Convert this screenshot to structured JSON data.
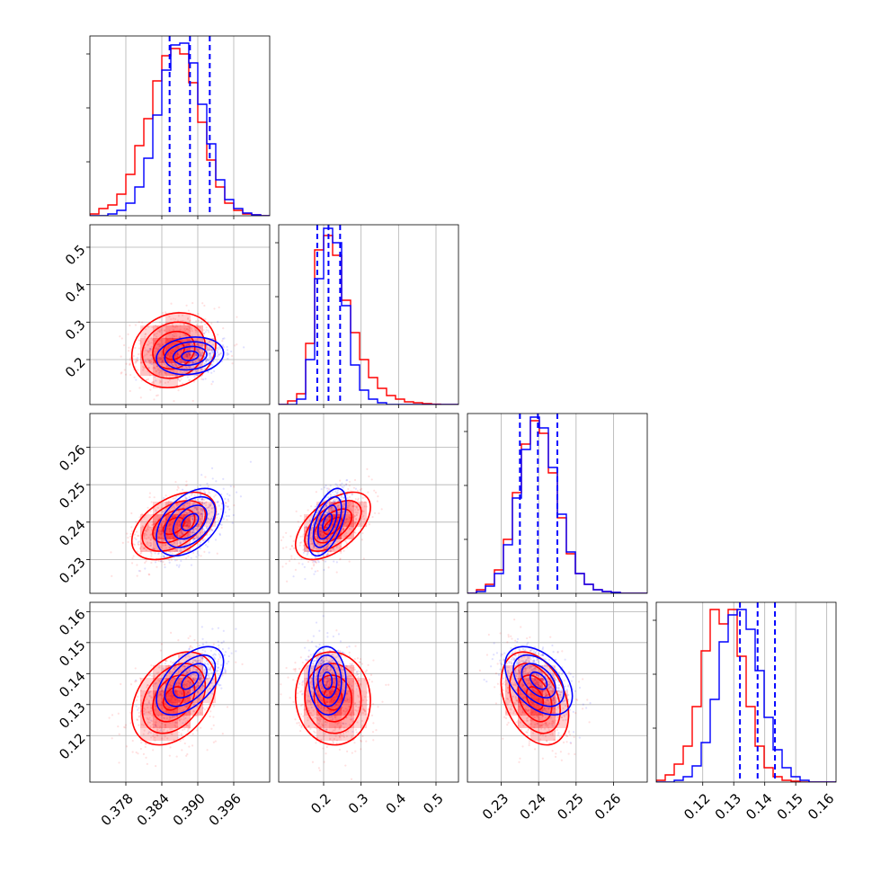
{
  "chart_data": {
    "type": "corner",
    "grid": true,
    "colors": {
      "red": "#ff0000",
      "blue": "#0000ff",
      "grid": "#b0b0b0"
    },
    "parameters": [
      {
        "range": [
          0.372,
          0.402
        ],
        "ticks": [
          0.378,
          0.384,
          0.39,
          0.396
        ],
        "tick_labels": [
          "0.378",
          "0.384",
          "0.390",
          "0.396"
        ]
      },
      {
        "range": [
          0.08,
          0.56
        ],
        "ticks": [
          0.2,
          0.3,
          0.4,
          0.5
        ],
        "tick_labels": [
          "0.2",
          "0.3",
          "0.4",
          "0.5"
        ]
      },
      {
        "range": [
          0.221,
          0.269
        ],
        "ticks": [
          0.23,
          0.24,
          0.25,
          0.26
        ],
        "tick_labels": [
          "0.23",
          "0.24",
          "0.25",
          "0.26"
        ]
      },
      {
        "range": [
          0.105,
          0.163
        ],
        "ticks": [
          0.12,
          0.13,
          0.14,
          0.15,
          0.16
        ],
        "tick_labels": [
          "0.12",
          "0.13",
          "0.14",
          "0.15",
          "0.16"
        ]
      }
    ],
    "quantile_lines": [
      [
        0.3853,
        0.3887,
        0.392
      ],
      [
        0.183,
        0.213,
        0.244
      ],
      [
        0.235,
        0.2398,
        0.245
      ],
      [
        0.132,
        0.1377,
        0.1433
      ]
    ],
    "series": [
      {
        "color": "red",
        "means": [
          0.386,
          0.225,
          0.239,
          0.132
        ],
        "stds": [
          0.0035,
          0.05,
          0.0045,
          0.0075
        ],
        "corr": {
          "0-1": 0.15,
          "0-2": 0.45,
          "0-3": 0.35,
          "1-2": 0.55,
          "1-3": -0.05,
          "2-3": -0.35
        }
      },
      {
        "color": "blue",
        "means": [
          0.3887,
          0.21,
          0.24,
          0.1377
        ],
        "stds": [
          0.0028,
          0.025,
          0.0045,
          0.0055
        ],
        "corr": {
          "0-1": 0.15,
          "0-2": 0.45,
          "0-3": 0.55,
          "1-2": 0.55,
          "1-3": -0.05,
          "2-3": -0.45
        }
      }
    ],
    "histograms": [
      {
        "edges": [
          0.372,
          0.3735,
          0.375,
          0.3765,
          0.378,
          0.3795,
          0.381,
          0.3825,
          0.384,
          0.3855,
          0.387,
          0.3885,
          0.39,
          0.3915,
          0.393,
          0.3945,
          0.396,
          0.3975,
          0.399,
          0.4005,
          0.402
        ],
        "red": [
          0.01,
          0.04,
          0.06,
          0.12,
          0.23,
          0.39,
          0.54,
          0.75,
          0.89,
          0.93,
          0.9,
          0.74,
          0.52,
          0.31,
          0.16,
          0.07,
          0.03,
          0.01,
          0.005,
          0.0
        ],
        "blue": [
          0.0,
          0.0,
          0.01,
          0.03,
          0.07,
          0.16,
          0.32,
          0.56,
          0.81,
          0.95,
          0.96,
          0.85,
          0.62,
          0.4,
          0.2,
          0.09,
          0.04,
          0.015,
          0.005,
          0.0
        ]
      },
      {
        "edges": [
          0.08,
          0.104,
          0.128,
          0.152,
          0.176,
          0.2,
          0.224,
          0.248,
          0.272,
          0.296,
          0.32,
          0.344,
          0.368,
          0.392,
          0.416,
          0.44,
          0.464,
          0.488,
          0.512,
          0.536,
          0.56
        ],
        "red": [
          0.0,
          0.02,
          0.06,
          0.34,
          0.86,
          0.94,
          0.83,
          0.58,
          0.4,
          0.25,
          0.15,
          0.09,
          0.05,
          0.03,
          0.015,
          0.01,
          0.005,
          0.002,
          0.0,
          0.0
        ],
        "blue": [
          0.0,
          0.0,
          0.03,
          0.25,
          0.7,
          0.98,
          0.9,
          0.55,
          0.22,
          0.08,
          0.03,
          0.01,
          0.0,
          0.0,
          0.0,
          0.0,
          0.0,
          0.0,
          0.0,
          0.0
        ]
      },
      {
        "edges": [
          0.221,
          0.2234,
          0.2258,
          0.2282,
          0.2306,
          0.233,
          0.2354,
          0.2378,
          0.2402,
          0.2426,
          0.245,
          0.2474,
          0.2498,
          0.2522,
          0.2546,
          0.257,
          0.2594,
          0.2618,
          0.2642,
          0.2666,
          0.269
        ],
        "red": [
          0.0,
          0.02,
          0.05,
          0.13,
          0.3,
          0.56,
          0.83,
          0.96,
          0.89,
          0.67,
          0.42,
          0.22,
          0.11,
          0.05,
          0.02,
          0.01,
          0.005,
          0.0,
          0.0,
          0.0
        ],
        "blue": [
          0.0,
          0.01,
          0.04,
          0.11,
          0.27,
          0.53,
          0.8,
          0.98,
          0.92,
          0.7,
          0.44,
          0.23,
          0.11,
          0.05,
          0.02,
          0.01,
          0.005,
          0.0,
          0.0,
          0.0
        ]
      },
      {
        "edges": [
          0.105,
          0.1079,
          0.1108,
          0.1137,
          0.1166,
          0.1195,
          0.1224,
          0.1253,
          0.1282,
          0.1311,
          0.134,
          0.1369,
          0.1398,
          0.1427,
          0.1456,
          0.1485,
          0.1514,
          0.1543,
          0.1572,
          0.1601,
          0.163
        ],
        "red": [
          0.01,
          0.04,
          0.1,
          0.2,
          0.42,
          0.73,
          0.96,
          0.88,
          0.96,
          0.7,
          0.42,
          0.2,
          0.08,
          0.03,
          0.01,
          0.005,
          0.0,
          0.0,
          0.0,
          0.0
        ],
        "blue": [
          0.0,
          0.0,
          0.01,
          0.03,
          0.09,
          0.22,
          0.46,
          0.78,
          0.93,
          0.96,
          0.85,
          0.62,
          0.36,
          0.18,
          0.08,
          0.03,
          0.01,
          0.0,
          0.0,
          0.0
        ]
      }
    ]
  }
}
